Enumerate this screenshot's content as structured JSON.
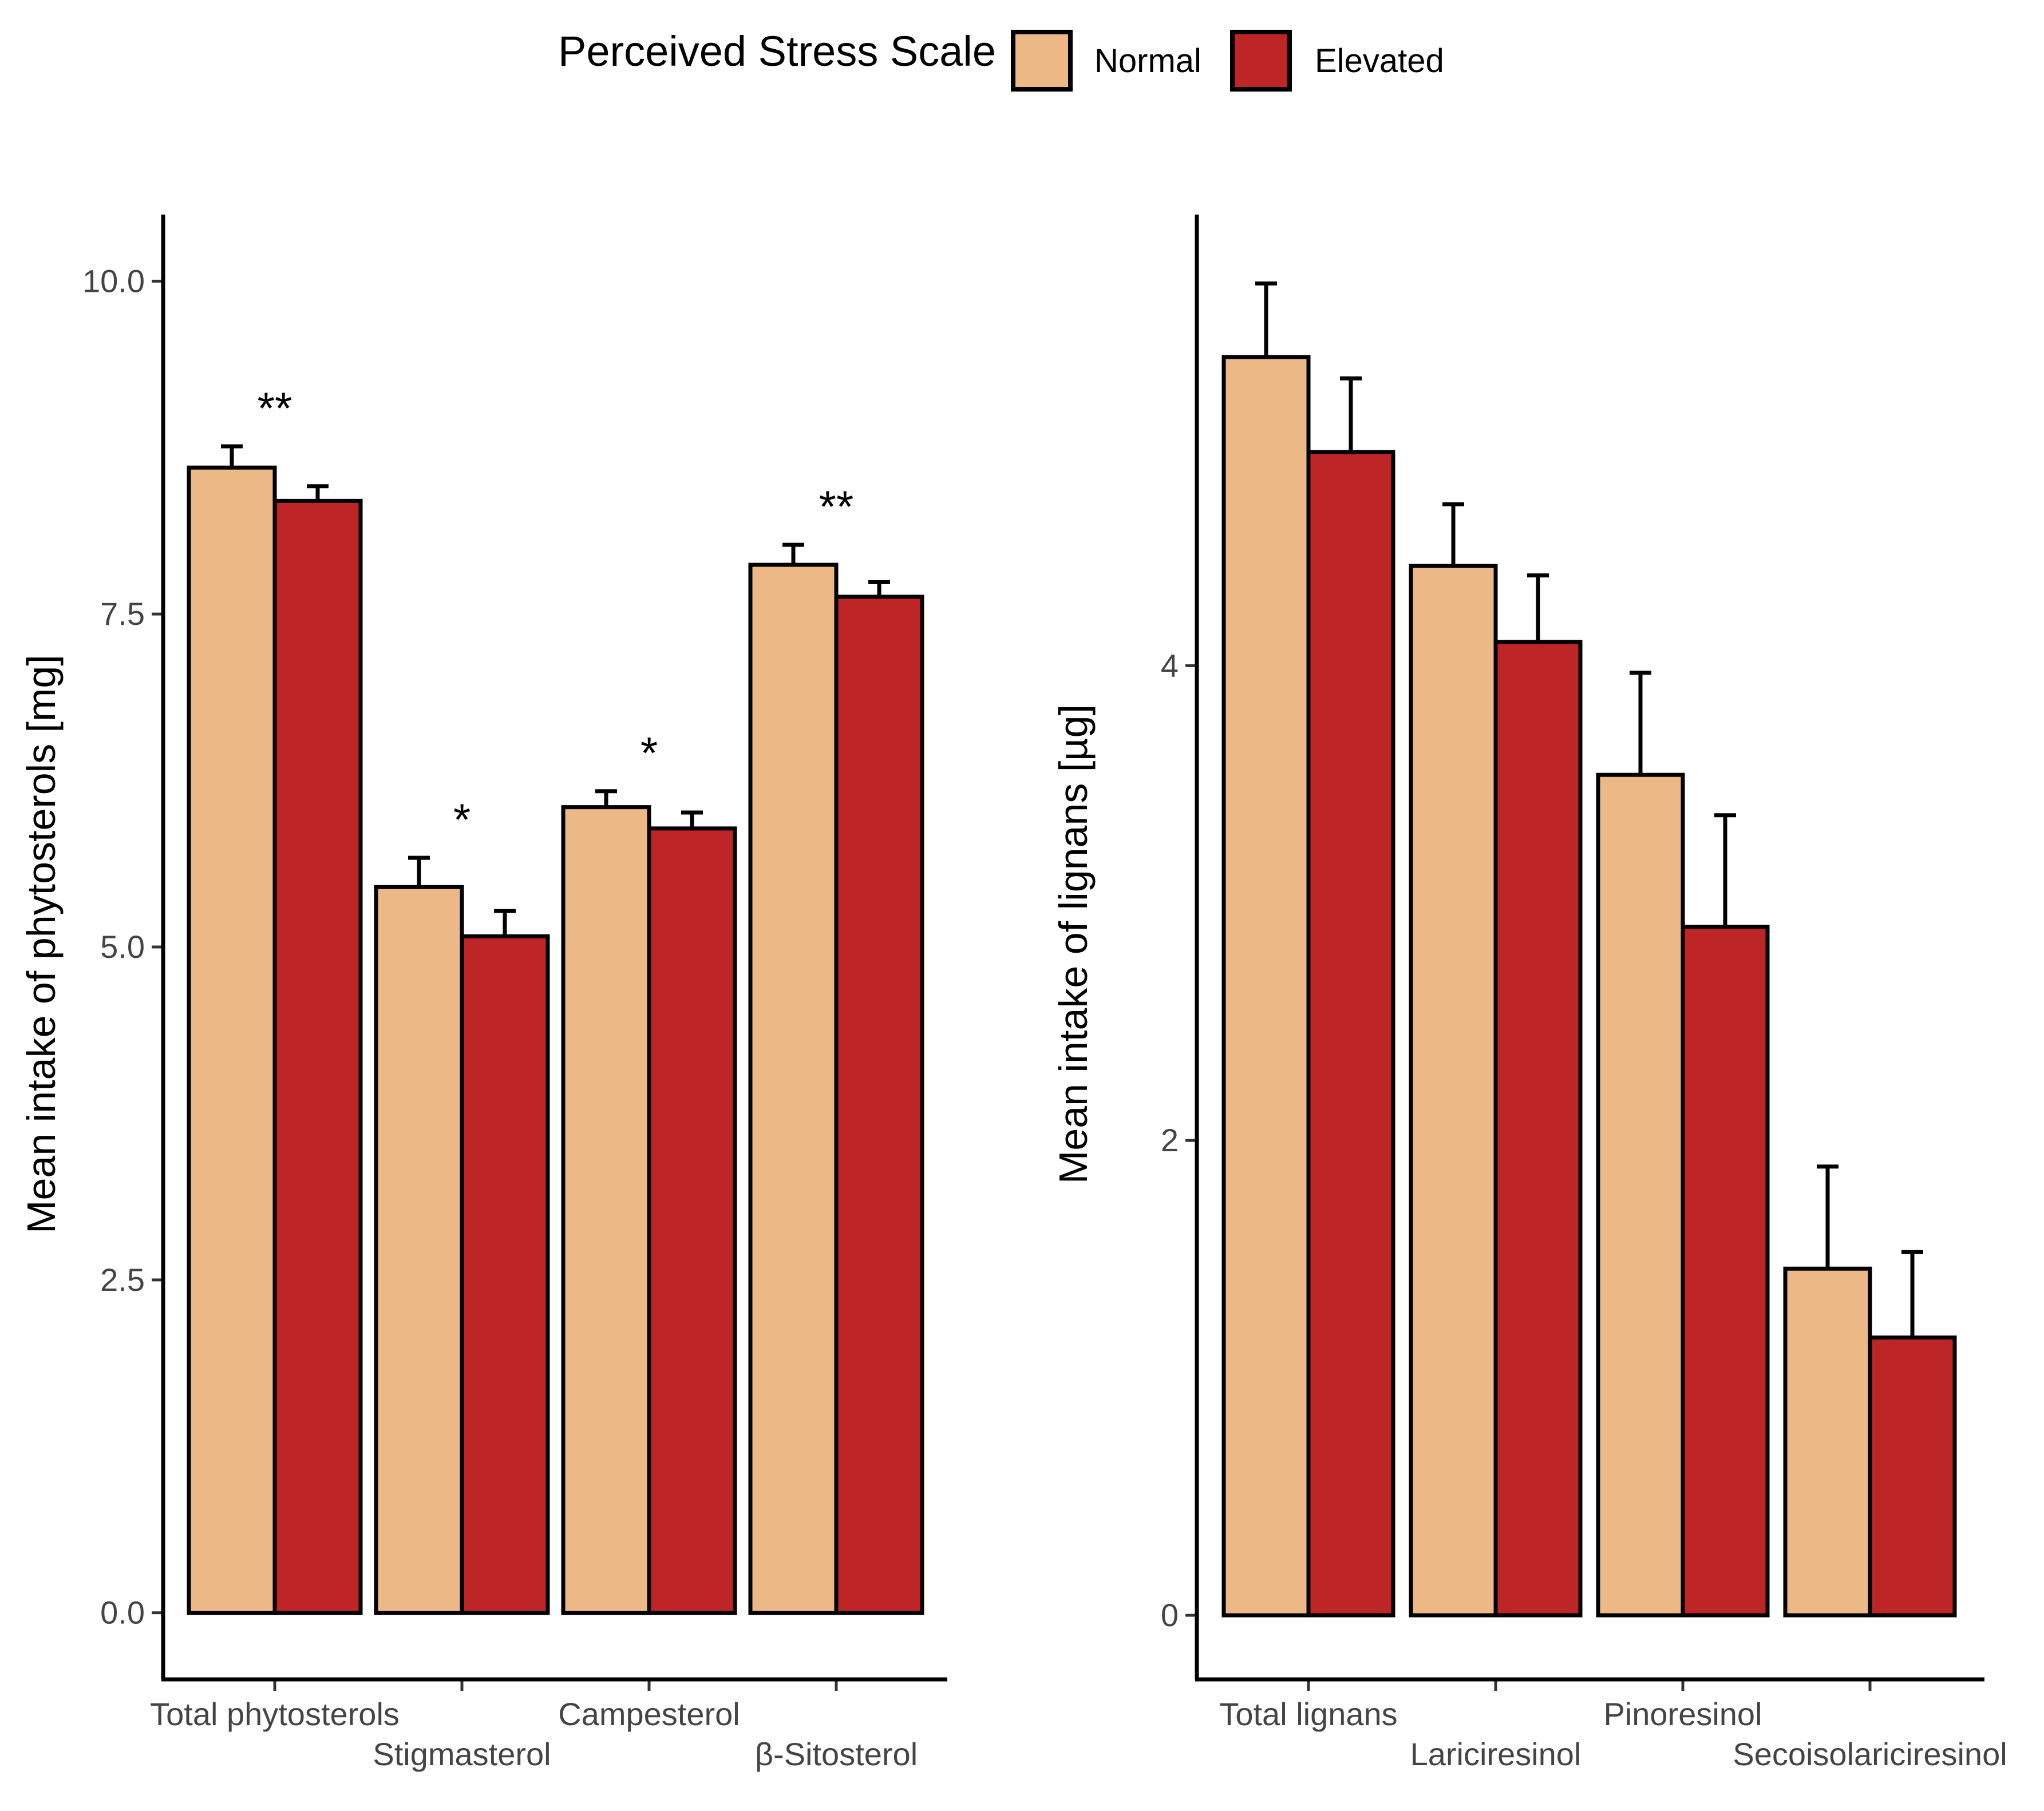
{
  "legend": {
    "title": "Perceived Stress Scale",
    "items": [
      {
        "label": "Normal",
        "color": "#ECB886"
      },
      {
        "label": "Elevated",
        "color": "#BE2526"
      }
    ]
  },
  "chart_data": [
    {
      "type": "bar",
      "ylabel": "Mean intake of phytosterols [mg]",
      "ylim": [
        -0.5,
        10.5
      ],
      "yticks": [
        0.0,
        2.5,
        5.0,
        7.5,
        10.0
      ],
      "ytick_labels": [
        "0.0",
        "2.5",
        "5.0",
        "7.5",
        "10.0"
      ],
      "categories": [
        "Total phytosterols",
        "Stigmasterol",
        "Campesterol",
        "β-Sitosterol"
      ],
      "series": [
        {
          "name": "Normal",
          "values": [
            8.6,
            5.45,
            6.05,
            7.87
          ],
          "errors": [
            0.16,
            0.22,
            0.12,
            0.15
          ]
        },
        {
          "name": "Elevated",
          "values": [
            8.35,
            5.08,
            5.89,
            7.63
          ],
          "errors": [
            0.11,
            0.19,
            0.12,
            0.11
          ]
        }
      ],
      "significance": [
        "**",
        "*",
        "*",
        "**"
      ]
    },
    {
      "type": "bar",
      "ylabel": "Mean intake of lignans [µg]",
      "ylim": [
        -0.27,
        5.9
      ],
      "yticks": [
        0,
        2,
        4
      ],
      "ytick_labels": [
        "0",
        "2",
        "4"
      ],
      "categories": [
        "Total lignans",
        "Lariciresinol",
        "Pinoresinol",
        "Secoisolariciresinol"
      ],
      "series": [
        {
          "name": "Normal",
          "values": [
            5.3,
            4.42,
            3.54,
            1.46
          ],
          "errors": [
            0.31,
            0.26,
            0.43,
            0.43
          ]
        },
        {
          "name": "Elevated",
          "values": [
            4.9,
            4.1,
            2.9,
            1.17
          ],
          "errors": [
            0.31,
            0.28,
            0.47,
            0.36
          ]
        }
      ],
      "significance": [
        "",
        "",
        "",
        ""
      ]
    }
  ]
}
